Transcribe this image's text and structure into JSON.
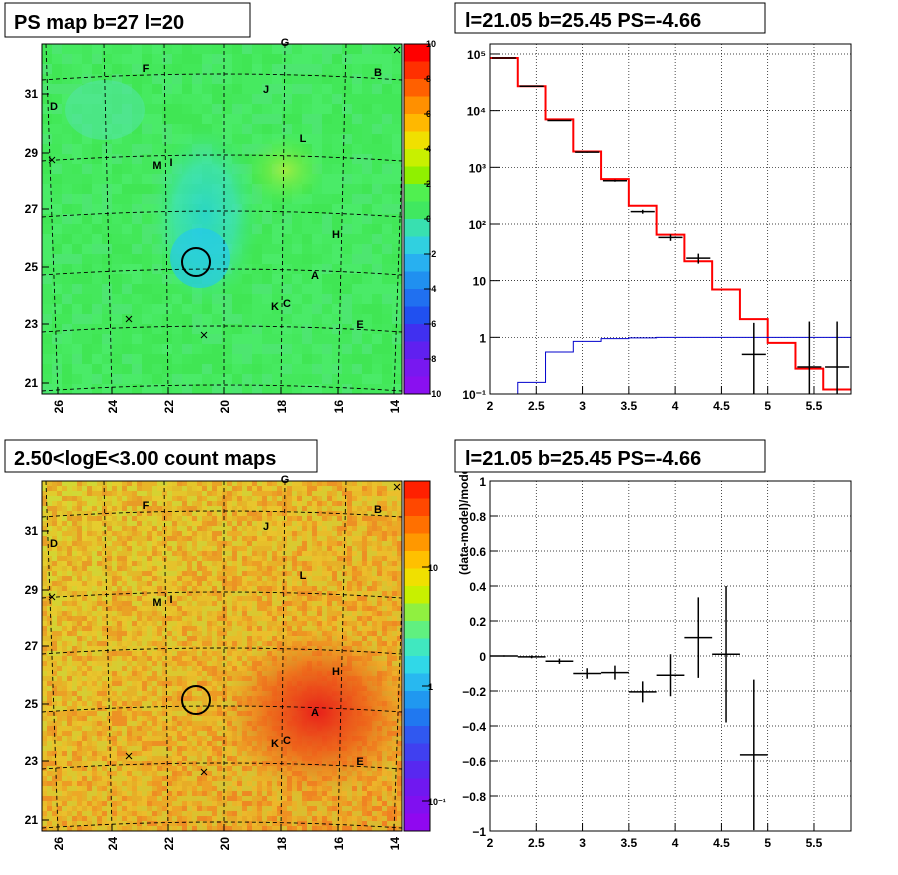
{
  "panels": {
    "ps_map": {
      "title": "PS map b=27 l=20",
      "x_ticks": [
        "26",
        "24",
        "22",
        "20",
        "18",
        "16",
        "14"
      ],
      "y_ticks": [
        "31",
        "29",
        "27",
        "25",
        "23",
        "21"
      ],
      "colorbar_ticks": [
        "10",
        "8",
        "6",
        "4",
        "2",
        "0",
        "−2",
        "−4",
        "−6",
        "−8",
        "−10"
      ]
    },
    "spectrum": {
      "title": "l=21.05 b=25.45 PS=-4.66",
      "x_ticks": [
        "2",
        "2.5",
        "3",
        "3.5",
        "4",
        "4.5",
        "5",
        "5.5"
      ],
      "y_ticks": [
        "10⁵",
        "10⁴",
        "10³",
        "10²",
        "10",
        "1",
        "10⁻¹"
      ]
    },
    "count_map": {
      "title": "2.50<logE<3.00 count maps",
      "x_ticks": [
        "26",
        "24",
        "22",
        "20",
        "18",
        "16",
        "14"
      ],
      "y_ticks": [
        "31",
        "29",
        "27",
        "25",
        "23",
        "21"
      ],
      "colorbar_ticks": [
        "10",
        "1",
        "10⁻¹"
      ]
    },
    "residual": {
      "title": "l=21.05 b=25.45 PS=-4.66",
      "ylabel": "(data-model)/model",
      "x_ticks": [
        "2",
        "2.5",
        "3",
        "3.5",
        "4",
        "4.5",
        "5",
        "5.5"
      ],
      "y_ticks": [
        "1",
        "0.8",
        "0.6",
        "0.4",
        "0.2",
        "0",
        "−0.2",
        "−0.4",
        "−0.6",
        "−0.8",
        "−1"
      ]
    }
  },
  "sources": [
    {
      "label": "G"
    },
    {
      "label": "F"
    },
    {
      "label": "B"
    },
    {
      "label": "J"
    },
    {
      "label": "D"
    },
    {
      "label": "L"
    },
    {
      "label": "M"
    },
    {
      "label": "I"
    },
    {
      "label": "H"
    },
    {
      "label": "A"
    },
    {
      "label": "K"
    },
    {
      "label": "C"
    },
    {
      "label": "E"
    }
  ],
  "chart_data": [
    {
      "type": "heatmap",
      "title": "PS map b=27 l=20",
      "xlabel": "",
      "ylabel": "",
      "xlim": [
        26.3,
        13.7
      ],
      "ylim": [
        20.8,
        32.8
      ],
      "zlim": [
        -10,
        10
      ],
      "colormap": "rainbow",
      "marked_position": {
        "l": 21.05,
        "b": 25.45
      }
    },
    {
      "type": "line",
      "title": "l=21.05 b=25.45 PS=-4.66",
      "xlabel": "",
      "ylabel": "",
      "xlim": [
        2.0,
        5.9
      ],
      "ylim": [
        0.1,
        150000
      ],
      "y_scale": "log",
      "grid": true,
      "series": [
        {
          "color": "#ff0000",
          "style": "step",
          "bins": [
            2.0,
            2.3,
            2.6,
            2.9,
            3.2,
            3.5,
            3.8,
            4.1,
            4.4,
            4.7,
            5.0,
            5.3,
            5.6,
            5.9
          ],
          "values": [
            85000,
            27000,
            7000,
            1900,
            620,
            210,
            65,
            22,
            7,
            2.1,
            0.8,
            0.28,
            0.12
          ]
        },
        {
          "color": "#0000cc",
          "style": "step",
          "bins": [
            2.0,
            2.3,
            2.6,
            2.9,
            3.2,
            3.5,
            3.8,
            4.1,
            4.4,
            4.7,
            5.0,
            5.3,
            5.6,
            5.9
          ],
          "values": [
            0.1,
            0.16,
            0.55,
            0.85,
            0.95,
            0.98,
            1.0,
            1.0,
            1.0,
            1.0,
            1.0,
            1.0,
            1.0
          ]
        },
        {
          "color": "#000000",
          "style": "points",
          "x": [
            2.15,
            2.45,
            2.75,
            3.05,
            3.35,
            3.65,
            3.95,
            4.25,
            4.55,
            4.85,
            5.45,
            5.75
          ],
          "y": [
            85000,
            27000,
            6700,
            1850,
            580,
            165,
            58,
            25,
            null,
            0.5,
            0.3,
            0.3
          ],
          "yerr_lo": [
            84400,
            26700,
            6580,
            1810,
            556,
            152,
            50.5,
            20,
            null,
            0.1,
            0.1,
            0.1
          ],
          "yerr_hi": [
            85600,
            27330,
            6820,
            1890,
            604,
            178,
            65.5,
            30,
            null,
            1.8,
            1.9,
            1.9
          ]
        }
      ]
    },
    {
      "type": "heatmap",
      "title": "2.50<logE<3.00 count maps",
      "xlabel": "",
      "ylabel": "",
      "xlim": [
        26.3,
        13.7
      ],
      "ylim": [
        20.8,
        32.8
      ],
      "zlim": [
        0.05,
        30
      ],
      "z_scale": "log",
      "colormap": "rainbow"
    },
    {
      "type": "scatter",
      "title": "l=21.05 b=25.45 PS=-4.66",
      "xlabel": "",
      "ylabel": "(data-model)/model",
      "xlim": [
        2.0,
        5.9
      ],
      "ylim": [
        -1,
        1
      ],
      "grid": true,
      "series": [
        {
          "color": "#000000",
          "x": [
            2.15,
            2.45,
            2.75,
            3.05,
            3.35,
            3.65,
            3.95,
            4.25,
            4.55,
            4.85
          ],
          "xerr": [
            0.15,
            0.15,
            0.15,
            0.15,
            0.15,
            0.15,
            0.15,
            0.15,
            0.15,
            0.15
          ],
          "y": [
            0.0,
            -0.005,
            -0.03,
            -0.1,
            -0.095,
            -0.205,
            -0.11,
            0.105,
            0.01,
            -0.565
          ],
          "yerr": [
            0.004,
            0.008,
            0.015,
            0.03,
            0.04,
            0.06,
            0.12,
            0.23,
            0.39,
            0.43
          ]
        }
      ]
    }
  ]
}
